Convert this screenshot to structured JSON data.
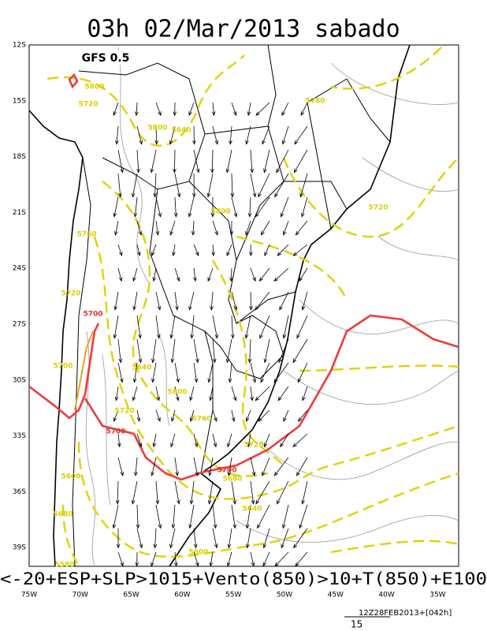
{
  "header": {
    "title": "03h 02/Mar/2013 sabado",
    "model": "GFS 0.5"
  },
  "axes": {
    "lat_labels": [
      "12S",
      "15S",
      "18S",
      "21S",
      "24S",
      "27S",
      "30S",
      "33S",
      "36S",
      "39S"
    ],
    "lon_labels": [
      "75W",
      "70W",
      "65W",
      "60W",
      "55W",
      "50W",
      "45W",
      "40W",
      "35W"
    ]
  },
  "contour_labels": [
    {
      "text": "5800",
      "color": "#d8d000"
    },
    {
      "text": "5720",
      "color": "#d8d000"
    },
    {
      "text": "5780",
      "color": "#d8d000"
    },
    {
      "text": "5800",
      "color": "#d8d000"
    },
    {
      "text": "5640",
      "color": "#d8d000"
    },
    {
      "text": "5800",
      "color": "#d8d000"
    },
    {
      "text": "5720",
      "color": "#d8d000"
    },
    {
      "text": "5760",
      "color": "#d8d000"
    },
    {
      "text": "5720",
      "color": "#d8d000"
    },
    {
      "text": "5700",
      "color": "#e83030"
    },
    {
      "text": "5700",
      "color": "#d8d000"
    },
    {
      "text": "5640",
      "color": "#d8d000"
    },
    {
      "text": "5800",
      "color": "#d8d000"
    },
    {
      "text": "5720",
      "color": "#d8d000"
    },
    {
      "text": "5700",
      "color": "#e83030"
    },
    {
      "text": "5760",
      "color": "#d8d000"
    },
    {
      "text": "5700",
      "color": "#e83030"
    },
    {
      "text": "5680",
      "color": "#d8d000"
    },
    {
      "text": "5720",
      "color": "#d8d000"
    },
    {
      "text": "5600",
      "color": "#d8d000"
    },
    {
      "text": "5640",
      "color": "#d8d000"
    },
    {
      "text": "5680",
      "color": "#d8d000"
    },
    {
      "text": "5600",
      "color": "#d8d000"
    },
    {
      "text": "5580",
      "color": "#d8d000"
    }
  ],
  "caption": "<-20+ESP+SLP>1015+Vento(850)>10+T(850)+E100",
  "footer": {
    "timestamp": "12Z28FEB2013+[042h]",
    "scale_label": "15"
  }
}
